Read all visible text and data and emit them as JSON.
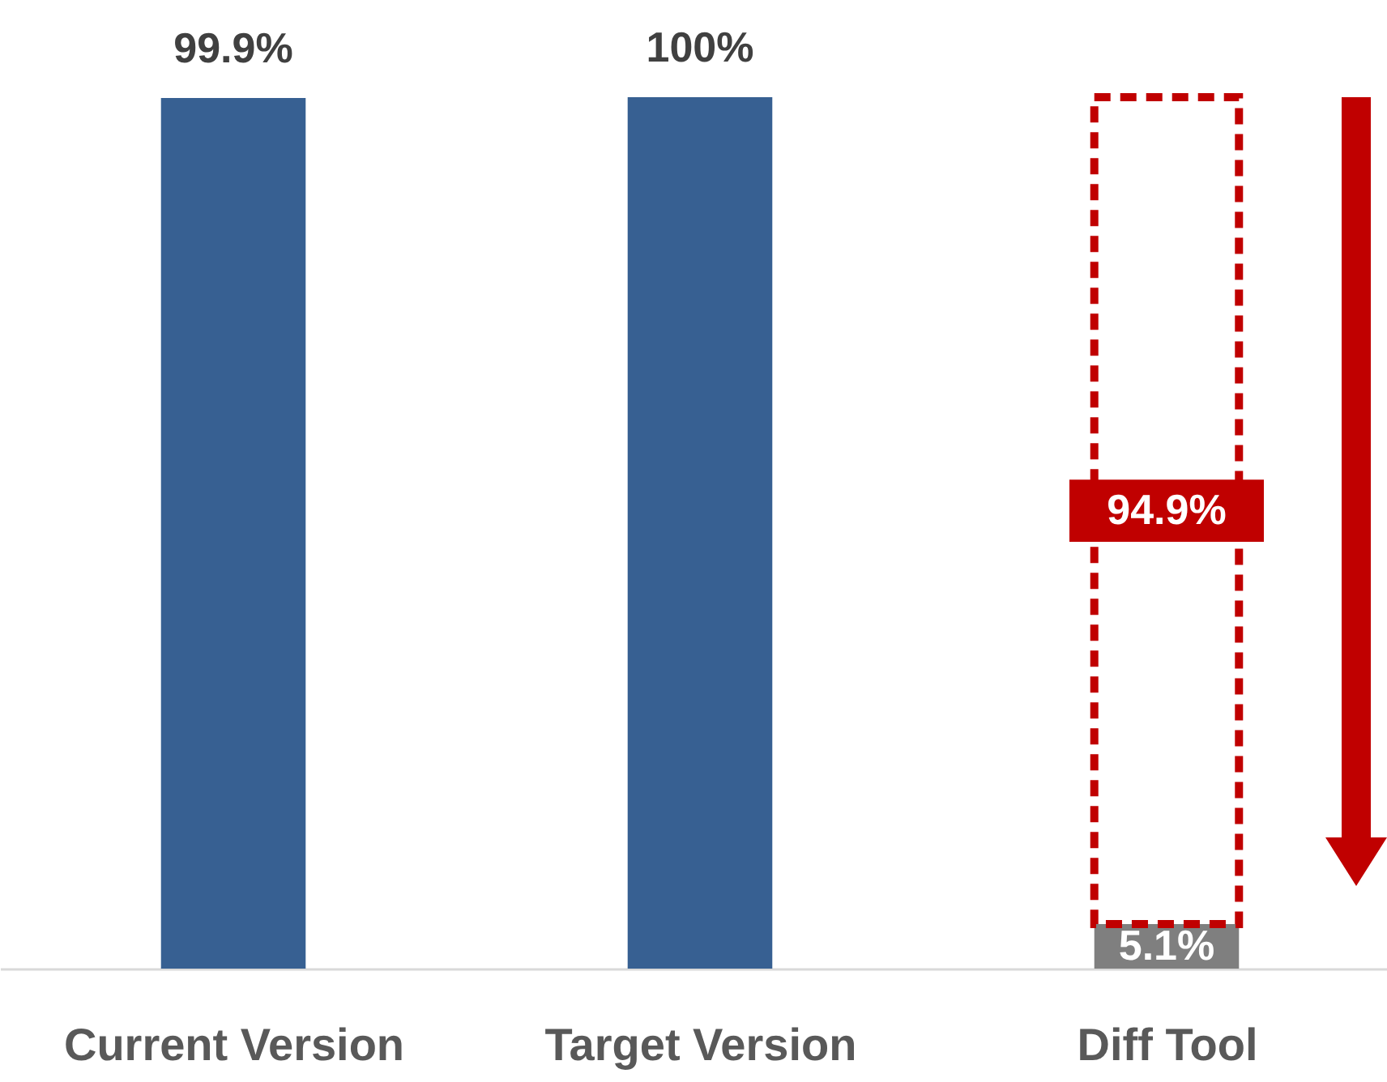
{
  "chart_data": {
    "type": "bar",
    "stacked": true,
    "categories": [
      "Current Version",
      "Target Version",
      "Diff Tool"
    ],
    "series": [
      {
        "colors": [
          "#376092",
          "#376092",
          "#7f7f7f"
        ],
        "values": [
          99.9,
          100,
          5.1
        ],
        "value_labels": [
          "99.9%",
          "100%",
          "5.1%"
        ]
      },
      {
        "color": "#c00000",
        "line_style": "dashed",
        "values": [
          null,
          null,
          94.9
        ],
        "value_labels": [
          null,
          null,
          "94.9%"
        ]
      }
    ],
    "ylim": [
      0,
      100
    ],
    "tick_labels": "x",
    "grid": false
  }
}
